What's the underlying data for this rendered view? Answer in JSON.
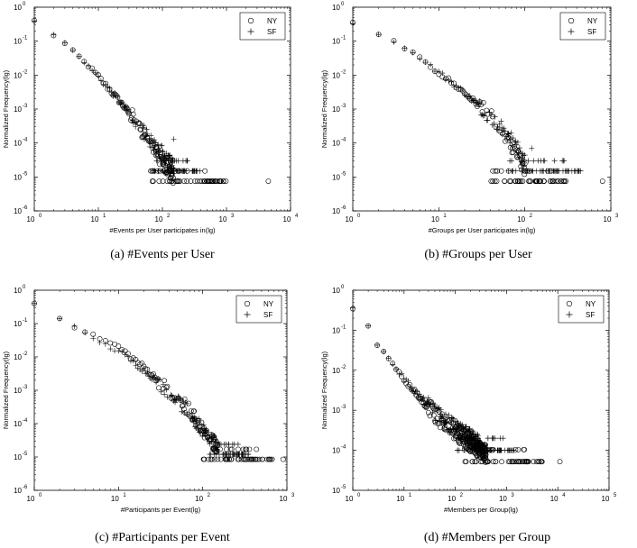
{
  "chart_data": [
    {
      "type": "scatter",
      "caption": "(a) #Events per User",
      "xlabel": "#Events per User participates in(lg)",
      "ylabel": "Normalized Frequency(lg)",
      "xscale": "log",
      "yscale": "log",
      "xlim": [
        1,
        10000
      ],
      "ylim": [
        1e-06,
        1
      ],
      "x_ticks": [
        {
          "base": "10",
          "exp": "0"
        },
        {
          "base": "10",
          "exp": "1"
        },
        {
          "base": "10",
          "exp": "2"
        },
        {
          "base": "10",
          "exp": "3"
        },
        {
          "base": "10",
          "exp": "4"
        }
      ],
      "y_ticks": [
        {
          "base": "10",
          "exp": "-6"
        },
        {
          "base": "10",
          "exp": "-5"
        },
        {
          "base": "10",
          "exp": "-4"
        },
        {
          "base": "10",
          "exp": "-3"
        },
        {
          "base": "10",
          "exp": "-2"
        },
        {
          "base": "10",
          "exp": "-1"
        },
        {
          "base": "10",
          "exp": "0"
        }
      ],
      "legend_position": "top-right",
      "series": [
        {
          "name": "NY",
          "marker": "circle",
          "curve": [
            [
              1,
              0.4
            ],
            [
              2,
              0.15
            ],
            [
              3,
              0.085
            ],
            [
              5,
              0.035
            ],
            [
              10,
              0.009
            ],
            [
              20,
              0.002
            ],
            [
              40,
              0.0004
            ],
            [
              70,
              8e-05
            ],
            [
              100,
              3e-05
            ],
            [
              150,
              1e-05
            ]
          ],
          "floor": {
            "y": 7.5e-06,
            "x_from": 60,
            "x_to": 1000
          },
          "extra": [
            [
              4500,
              7.5e-06
            ]
          ]
        },
        {
          "name": "SF",
          "marker": "plus",
          "curve": [
            [
              1,
              0.4
            ],
            [
              2,
              0.15
            ],
            [
              3,
              0.09
            ],
            [
              5,
              0.035
            ],
            [
              10,
              0.009
            ],
            [
              20,
              0.002
            ],
            [
              40,
              0.0004
            ],
            [
              70,
              0.0001
            ],
            [
              100,
              5e-05
            ],
            [
              150,
              2e-05
            ]
          ],
          "floor": {
            "y": 1.5e-05,
            "x_from": 70,
            "x_to": 400
          },
          "extra": [
            [
              150,
              0.00013
            ]
          ]
        }
      ]
    },
    {
      "type": "scatter",
      "caption": "(b) #Groups per User",
      "xlabel": "#Groups per User participates in(lg)",
      "ylabel": "Normalized Frequency(lg)",
      "xscale": "log",
      "yscale": "log",
      "xlim": [
        1,
        1000
      ],
      "ylim": [
        1e-06,
        1
      ],
      "x_ticks": [
        {
          "base": "10",
          "exp": "0"
        },
        {
          "base": "10",
          "exp": "1"
        },
        {
          "base": "10",
          "exp": "2"
        },
        {
          "base": "10",
          "exp": "3"
        }
      ],
      "y_ticks": [
        {
          "base": "10",
          "exp": "-6"
        },
        {
          "base": "10",
          "exp": "-5"
        },
        {
          "base": "10",
          "exp": "-4"
        },
        {
          "base": "10",
          "exp": "-3"
        },
        {
          "base": "10",
          "exp": "-2"
        },
        {
          "base": "10",
          "exp": "-1"
        },
        {
          "base": "10",
          "exp": "0"
        }
      ],
      "legend_position": "top-right",
      "series": [
        {
          "name": "NY",
          "marker": "circle",
          "curve": [
            [
              1,
              0.35
            ],
            [
              2,
              0.15
            ],
            [
              3,
              0.1
            ],
            [
              5,
              0.045
            ],
            [
              10,
              0.012
            ],
            [
              20,
              0.003
            ],
            [
              40,
              0.0006
            ],
            [
              60,
              0.00015
            ],
            [
              80,
              5e-05
            ],
            [
              100,
              1.5e-05
            ]
          ],
          "floor": {
            "y": 7.5e-06,
            "x_from": 40,
            "x_to": 350
          },
          "extra": [
            [
              800,
              7.5e-06
            ]
          ]
        },
        {
          "name": "SF",
          "marker": "plus",
          "curve": [
            [
              1,
              0.35
            ],
            [
              2,
              0.15
            ],
            [
              3,
              0.1
            ],
            [
              5,
              0.045
            ],
            [
              10,
              0.012
            ],
            [
              20,
              0.003
            ],
            [
              40,
              0.0006
            ],
            [
              60,
              0.0002
            ],
            [
              80,
              8e-05
            ],
            [
              100,
              3e-05
            ]
          ],
          "floor": {
            "y": 1.5e-05,
            "x_from": 60,
            "x_to": 450
          },
          "extra": [
            [
              120,
              7e-05
            ]
          ]
        }
      ]
    },
    {
      "type": "scatter",
      "caption": "(c) #Participants per Event",
      "xlabel": "#Participants per Event(lg)",
      "ylabel": "Normalized Frequency(lg)",
      "xscale": "log",
      "yscale": "log",
      "xlim": [
        1,
        1000
      ],
      "ylim": [
        1e-06,
        1
      ],
      "x_ticks": [
        {
          "base": "10",
          "exp": "0"
        },
        {
          "base": "10",
          "exp": "1"
        },
        {
          "base": "10",
          "exp": "2"
        },
        {
          "base": "10",
          "exp": "3"
        }
      ],
      "y_ticks": [
        {
          "base": "10",
          "exp": "-6"
        },
        {
          "base": "10",
          "exp": "-5"
        },
        {
          "base": "10",
          "exp": "-4"
        },
        {
          "base": "10",
          "exp": "-3"
        },
        {
          "base": "10",
          "exp": "-2"
        },
        {
          "base": "10",
          "exp": "-1"
        },
        {
          "base": "10",
          "exp": "0"
        }
      ],
      "legend_position": "top-right",
      "series": [
        {
          "name": "NY",
          "marker": "circle",
          "curve": [
            [
              1,
              0.4
            ],
            [
              2,
              0.15
            ],
            [
              3,
              0.08
            ],
            [
              5,
              0.045
            ],
            [
              10,
              0.02
            ],
            [
              20,
              0.005
            ],
            [
              40,
              0.001
            ],
            [
              70,
              0.00025
            ],
            [
              100,
              6e-05
            ],
            [
              150,
              2e-05
            ]
          ],
          "floor": {
            "y": 8.5e-06,
            "x_from": 100,
            "x_to": 700
          },
          "extra": [
            [
              900,
              8.5e-06
            ]
          ]
        },
        {
          "name": "SF",
          "marker": "plus",
          "curve": [
            [
              1,
              0.4
            ],
            [
              2,
              0.15
            ],
            [
              3,
              0.08
            ],
            [
              5,
              0.035
            ],
            [
              10,
              0.015
            ],
            [
              20,
              0.004
            ],
            [
              40,
              0.0009
            ],
            [
              70,
              0.0002
            ],
            [
              100,
              6e-05
            ],
            [
              150,
              2e-05
            ]
          ],
          "floor": {
            "y": 1.2e-05,
            "x_from": 120,
            "x_to": 350
          },
          "extra": []
        }
      ]
    },
    {
      "type": "scatter",
      "caption": "(d) #Members per Group",
      "xlabel": "#Members per Group(lg)",
      "ylabel": "Normalized Frequency(lg)",
      "xscale": "log",
      "yscale": "log",
      "xlim": [
        1,
        100000
      ],
      "ylim": [
        1e-05,
        1
      ],
      "x_ticks": [
        {
          "base": "10",
          "exp": "0"
        },
        {
          "base": "10",
          "exp": "1"
        },
        {
          "base": "10",
          "exp": "2"
        },
        {
          "base": "10",
          "exp": "3"
        },
        {
          "base": "10",
          "exp": "4"
        },
        {
          "base": "10",
          "exp": "5"
        }
      ],
      "y_ticks": [
        {
          "base": "10",
          "exp": "-5"
        },
        {
          "base": "10",
          "exp": "-4"
        },
        {
          "base": "10",
          "exp": "-3"
        },
        {
          "base": "10",
          "exp": "-2"
        },
        {
          "base": "10",
          "exp": "-1"
        },
        {
          "base": "10",
          "exp": "0"
        }
      ],
      "legend_position": "top-right",
      "series": [
        {
          "name": "NY",
          "marker": "circle",
          "curve": [
            [
              1,
              0.35
            ],
            [
              2,
              0.12
            ],
            [
              3,
              0.045
            ],
            [
              5,
              0.02
            ],
            [
              10,
              0.006
            ],
            [
              20,
              0.002
            ],
            [
              50,
              0.0006
            ],
            [
              100,
              0.0003
            ],
            [
              200,
              0.00015
            ],
            [
              400,
              8e-05
            ]
          ],
          "floor": {
            "y": 5.2e-05,
            "x_from": 150,
            "x_to": 5000
          },
          "extra": [
            [
              11000,
              5.2e-05
            ]
          ]
        },
        {
          "name": "SF",
          "marker": "plus",
          "curve": [
            [
              1,
              0.35
            ],
            [
              2,
              0.12
            ],
            [
              3,
              0.045
            ],
            [
              5,
              0.02
            ],
            [
              10,
              0.006
            ],
            [
              20,
              0.0022
            ],
            [
              50,
              0.0007
            ],
            [
              100,
              0.00035
            ],
            [
              200,
              0.0002
            ],
            [
              300,
              0.00014
            ]
          ],
          "floor": {
            "y": 0.0001,
            "x_from": 100,
            "x_to": 1500
          },
          "extra": []
        }
      ]
    }
  ]
}
